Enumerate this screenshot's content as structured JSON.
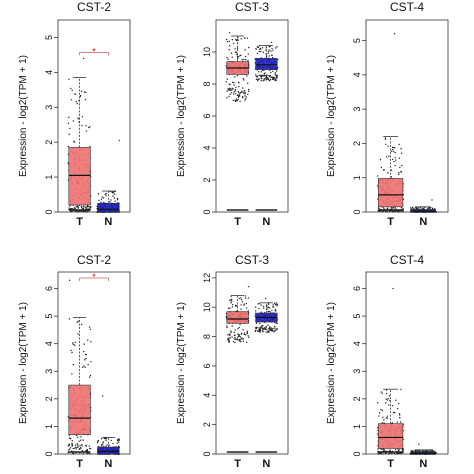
{
  "chart_data": [
    {
      "type": "box",
      "title": "CST-2",
      "ylabel": "Expression - log2(TPM + 1)",
      "ylim": [
        0,
        5.5
      ],
      "yticks": [
        0,
        1,
        2,
        3,
        4,
        5
      ],
      "categories": [
        "T",
        "N"
      ],
      "significance": "*",
      "boxes": [
        {
          "name": "T",
          "color": "#f07070",
          "q1": 0.2,
          "median": 1.05,
          "q3": 1.85,
          "whisker_low": 0,
          "whisker_high": 3.85,
          "max": 4.4
        },
        {
          "name": "N",
          "color": "#2020c0",
          "q1": 0.0,
          "median": 0.08,
          "q3": 0.25,
          "whisker_low": 0,
          "whisker_high": 0.6,
          "max": 2.05
        }
      ]
    },
    {
      "type": "box",
      "title": "CST-3",
      "ylabel": "Expression - log2(TPM + 1)",
      "ylim": [
        0,
        12
      ],
      "yticks": [
        0,
        2,
        4,
        6,
        8,
        10
      ],
      "categories": [
        "T",
        "N"
      ],
      "boxes": [
        {
          "name": "T",
          "color": "#f07070",
          "q1": 8.6,
          "median": 9.0,
          "q3": 9.4,
          "whisker_low": 6.9,
          "whisker_high": 11.0,
          "max": 11.2
        },
        {
          "name": "N",
          "color": "#2020c0",
          "q1": 8.9,
          "median": 9.2,
          "q3": 9.6,
          "whisker_low": 8.2,
          "whisker_high": 10.4,
          "max": 10.6
        }
      ]
    },
    {
      "type": "box",
      "title": "CST-4",
      "ylabel": "Expression - log2(TPM + 1)",
      "ylim": [
        0,
        5.6
      ],
      "yticks": [
        0,
        1,
        2,
        3,
        4,
        5
      ],
      "categories": [
        "T",
        "N"
      ],
      "boxes": [
        {
          "name": "T",
          "color": "#f07070",
          "q1": 0.15,
          "median": 0.5,
          "q3": 0.98,
          "whisker_low": 0,
          "whisker_high": 2.2,
          "max": 5.2
        },
        {
          "name": "N",
          "color": "#2020c0",
          "q1": 0.0,
          "median": 0.02,
          "q3": 0.06,
          "whisker_low": 0,
          "whisker_high": 0.15,
          "max": 0.35
        }
      ]
    },
    {
      "type": "box",
      "title": "CST-2",
      "ylabel": "Expression - log2(TPM + 1)",
      "ylim": [
        0,
        6.6
      ],
      "yticks": [
        0,
        1,
        2,
        3,
        4,
        5,
        6
      ],
      "categories": [
        "T",
        "N"
      ],
      "significance": "*",
      "boxes": [
        {
          "name": "T",
          "color": "#f07070",
          "q1": 0.7,
          "median": 1.3,
          "q3": 2.5,
          "whisker_low": 0,
          "whisker_high": 4.95,
          "max": 6.3
        },
        {
          "name": "N",
          "color": "#2020c0",
          "q1": 0.0,
          "median": 0.1,
          "q3": 0.25,
          "whisker_low": 0,
          "whisker_high": 0.6,
          "max": 2.1
        }
      ]
    },
    {
      "type": "box",
      "title": "CST-3",
      "ylabel": "Expression - log2(TPM + 1)",
      "ylim": [
        0,
        12.4
      ],
      "yticks": [
        0,
        2,
        4,
        6,
        8,
        10,
        12
      ],
      "categories": [
        "T",
        "N"
      ],
      "boxes": [
        {
          "name": "T",
          "color": "#f07070",
          "q1": 8.9,
          "median": 9.2,
          "q3": 9.7,
          "whisker_low": 7.6,
          "whisker_high": 10.8,
          "max": 11.4
        },
        {
          "name": "N",
          "color": "#2020c0",
          "q1": 9.0,
          "median": 9.3,
          "q3": 9.6,
          "whisker_low": 8.3,
          "whisker_high": 10.3,
          "max": 10.6
        }
      ]
    },
    {
      "type": "box",
      "title": "CST-4",
      "ylabel": "Expression - log2(TPM + 1)",
      "ylim": [
        0,
        6.6
      ],
      "yticks": [
        0,
        1,
        2,
        3,
        4,
        5,
        6
      ],
      "categories": [
        "T",
        "N"
      ],
      "boxes": [
        {
          "name": "T",
          "color": "#f07070",
          "q1": 0.2,
          "median": 0.6,
          "q3": 1.1,
          "whisker_low": 0,
          "whisker_high": 2.35,
          "max": 6.0
        },
        {
          "name": "N",
          "color": "#2020c0",
          "q1": 0.0,
          "median": 0.02,
          "q3": 0.06,
          "whisker_low": 0,
          "whisker_high": 0.15,
          "max": 0.35
        }
      ]
    }
  ]
}
